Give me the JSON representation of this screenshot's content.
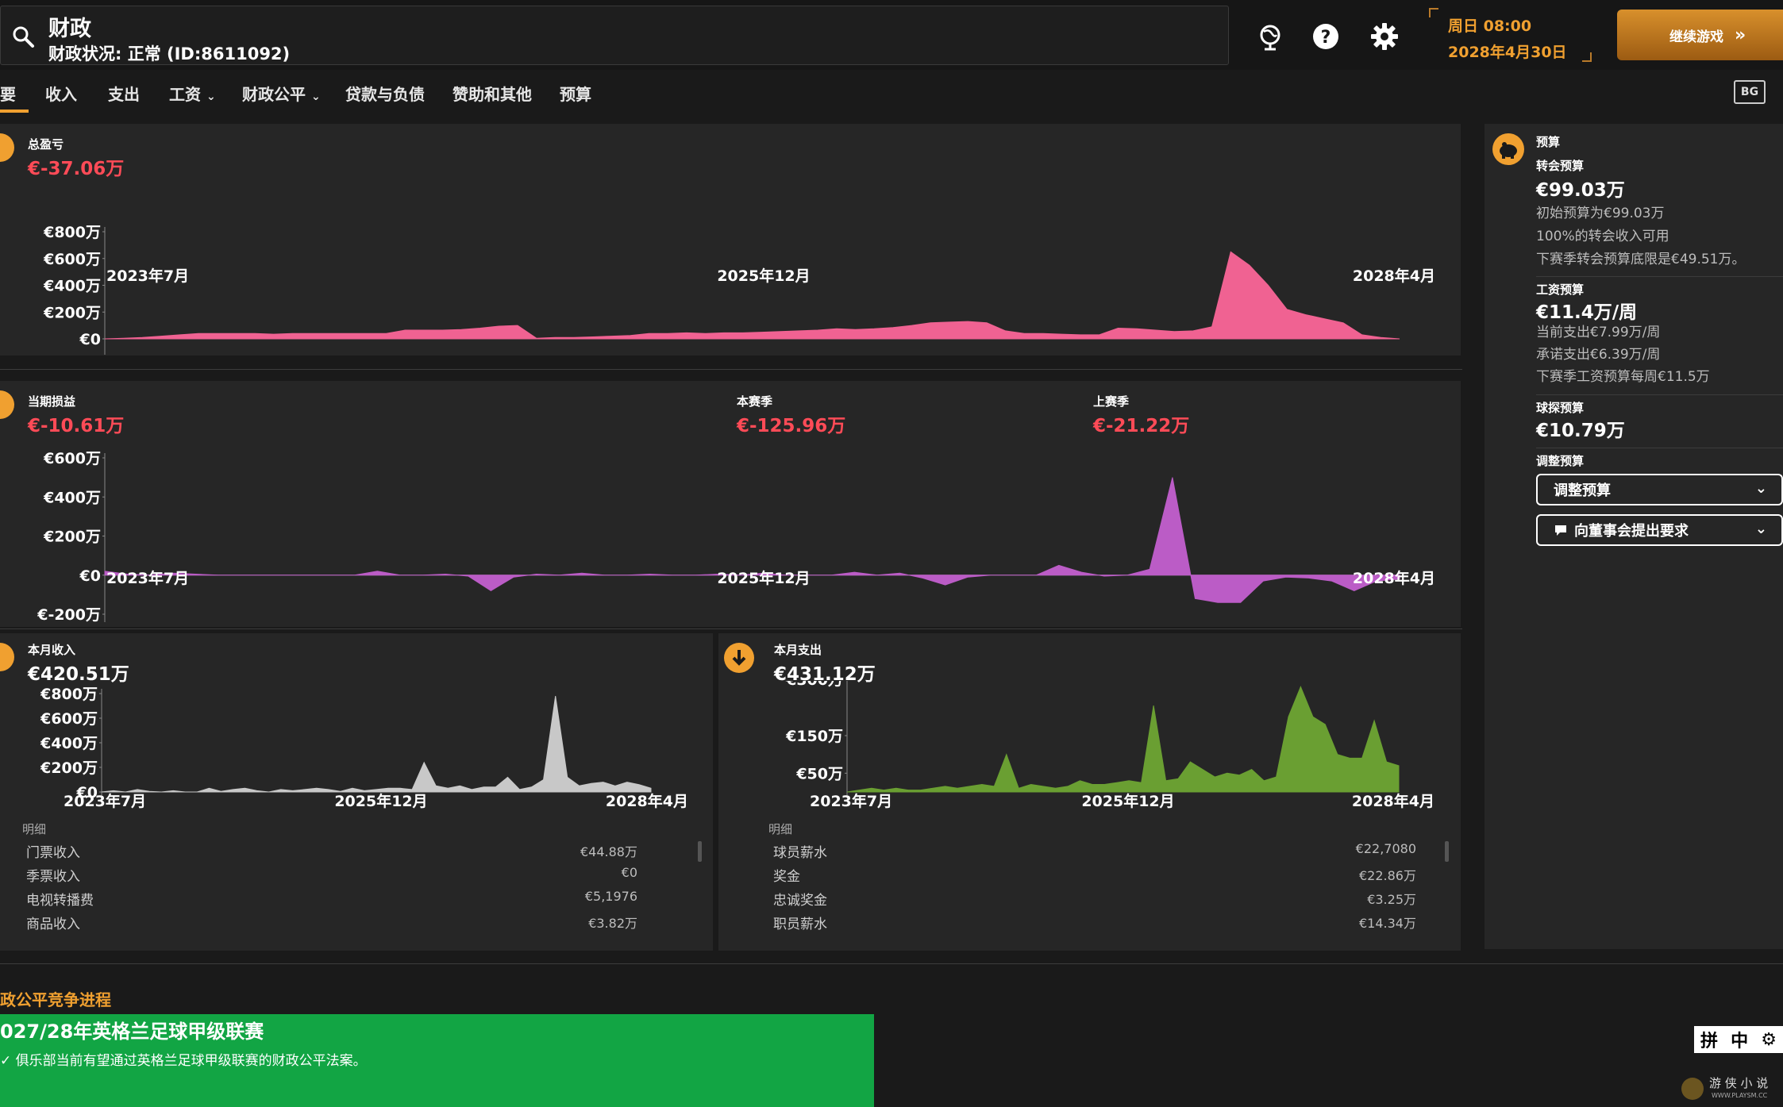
{
  "header": {
    "title": "财政",
    "status": "财政状况: 正常 (ID:8611092)",
    "day_time": "周日 08:00",
    "date": "2028年4月30日",
    "continue_label": "继续游戏"
  },
  "tabs": [
    {
      "label": "要"
    },
    {
      "label": "收入"
    },
    {
      "label": "支出"
    },
    {
      "label": "工资"
    },
    {
      "label": "财政公平"
    },
    {
      "label": "贷款与负债"
    },
    {
      "label": "赞助和其他"
    },
    {
      "label": "预算"
    }
  ],
  "toolbar": {
    "bg_label": "BG"
  },
  "colors": {
    "accent": "#f0a030",
    "negative": "#ff4b57",
    "pink": "#f06292",
    "purple": "#bb5cc6",
    "gray": "#c8c8c8",
    "green": "#6a9f32",
    "ffp_green": "#12a544"
  },
  "overall": {
    "label": "总盈亏",
    "value": "€-37.06万"
  },
  "period": {
    "current_label": "当期损益",
    "current_value": "€-10.61万",
    "season_label": "本赛季",
    "season_value": "€-125.96万",
    "last_label": "上赛季",
    "last_value": "€-21.22万"
  },
  "income": {
    "label": "本月收入",
    "value": "€420.51万",
    "details_label": "明细",
    "rows": [
      {
        "name": "门票收入",
        "value": "€44.88万"
      },
      {
        "name": "季票收入",
        "value": "€0"
      },
      {
        "name": "电视转播费",
        "value": "€5,1976"
      },
      {
        "name": "商品收入",
        "value": "€3.82万"
      }
    ]
  },
  "expense": {
    "label": "本月支出",
    "value": "€431.12万",
    "details_label": "明细",
    "rows": [
      {
        "name": "球员薪水",
        "value": "€22,7080"
      },
      {
        "name": "奖金",
        "value": "€22.86万"
      },
      {
        "name": "忠诚奖金",
        "value": "€3.25万"
      },
      {
        "name": "职员薪水",
        "value": "€14.34万"
      }
    ]
  },
  "budget": {
    "title": "预算",
    "transfer_label": "转会预算",
    "transfer_value": "€99.03万",
    "transfer_note1": "初始预算为€99.03万",
    "transfer_note2": "100%的转会收入可用",
    "transfer_note3": "下赛季转会预算底限是€49.51万。",
    "wage_label": "工资预算",
    "wage_value": "€11.4万/周",
    "wage_note1": "当前支出€7.99万/周",
    "wage_note2": "承诺支出€6.39万/周",
    "wage_note3": "下赛季工资预算每周€11.5万",
    "scout_label": "球探预算",
    "scout_value": "€10.79万",
    "adjust_label": "调整预算",
    "adjust_select": "调整预算",
    "request_select": "向董事会提出要求"
  },
  "ffp": {
    "section_title": "政公平竞争进程",
    "league_title": "027/28年英格兰足球甲级联赛",
    "status": "俱乐部当前有望通过英格兰足球甲级联赛的财政公平法案。"
  },
  "ime": {
    "label1": "拼",
    "label2": "中"
  },
  "watermark": {
    "text": "游 侠 小 说",
    "url": "WWW.PLAYSM.CC"
  },
  "chart_data": [
    {
      "id": "overall",
      "type": "area",
      "x_ticks": [
        "2023年7月",
        "2025年12月",
        "2028年4月"
      ],
      "y_ticks": [
        "€0",
        "€200万",
        "€400万",
        "€600万",
        "€800万"
      ],
      "ylim": [
        0,
        800
      ],
      "values": [
        0,
        5,
        10,
        20,
        30,
        40,
        40,
        40,
        40,
        35,
        40,
        40,
        40,
        40,
        40,
        40,
        65,
        65,
        65,
        70,
        80,
        95,
        100,
        5,
        10,
        10,
        15,
        20,
        25,
        40,
        40,
        45,
        40,
        45,
        45,
        50,
        55,
        60,
        65,
        75,
        70,
        75,
        85,
        100,
        120,
        125,
        130,
        120,
        60,
        40,
        40,
        35,
        30,
        30,
        80,
        75,
        65,
        55,
        60,
        90,
        650,
        550,
        400,
        220,
        180,
        150,
        120,
        30,
        10,
        0
      ]
    },
    {
      "id": "period",
      "type": "area",
      "x_ticks": [
        "2023年7月",
        "2025年12月",
        "2028年4月"
      ],
      "y_ticks": [
        "€-200万",
        "€0",
        "€200万",
        "€400万",
        "€600万"
      ],
      "ylim": [
        -200,
        600
      ],
      "values": [
        20,
        5,
        0,
        10,
        5,
        0,
        0,
        0,
        0,
        0,
        0,
        0,
        20,
        0,
        0,
        5,
        -5,
        -80,
        -10,
        5,
        0,
        10,
        0,
        0,
        5,
        0,
        0,
        5,
        0,
        10,
        0,
        0,
        0,
        15,
        0,
        10,
        -15,
        -50,
        -10,
        0,
        0,
        0,
        50,
        15,
        -5,
        0,
        30,
        500,
        -120,
        -140,
        -140,
        -30,
        -10,
        -15,
        -30,
        -80,
        -30,
        -20
      ]
    },
    {
      "id": "income",
      "type": "area",
      "x_ticks": [
        "2023年7月",
        "2025年12月",
        "2028年4月"
      ],
      "y_ticks": [
        "€0",
        "€200万",
        "€400万",
        "€600万",
        "€800万"
      ],
      "ylim": [
        0,
        800
      ],
      "values": [
        0,
        10,
        0,
        20,
        5,
        0,
        10,
        0,
        0,
        30,
        5,
        20,
        30,
        10,
        0,
        20,
        10,
        20,
        30,
        20,
        5,
        30,
        10,
        20,
        30,
        30,
        20,
        240,
        50,
        30,
        50,
        20,
        40,
        40,
        120,
        20,
        40,
        100,
        780,
        120,
        50,
        70,
        80,
        50,
        80,
        60,
        30
      ]
    },
    {
      "id": "expense",
      "type": "area",
      "x_ticks": [
        "2023年7月",
        "2025年12月",
        "2028年4月"
      ],
      "y_ticks": [
        "€50万",
        "€150万",
        "€300万"
      ],
      "ylim": [
        0,
        300
      ],
      "values": [
        0,
        5,
        10,
        5,
        10,
        5,
        5,
        10,
        15,
        10,
        15,
        20,
        15,
        100,
        10,
        20,
        15,
        10,
        15,
        30,
        20,
        20,
        25,
        30,
        25,
        230,
        30,
        35,
        80,
        60,
        40,
        50,
        45,
        60,
        30,
        40,
        200,
        280,
        200,
        180,
        100,
        90,
        90,
        190,
        80,
        70
      ]
    }
  ]
}
